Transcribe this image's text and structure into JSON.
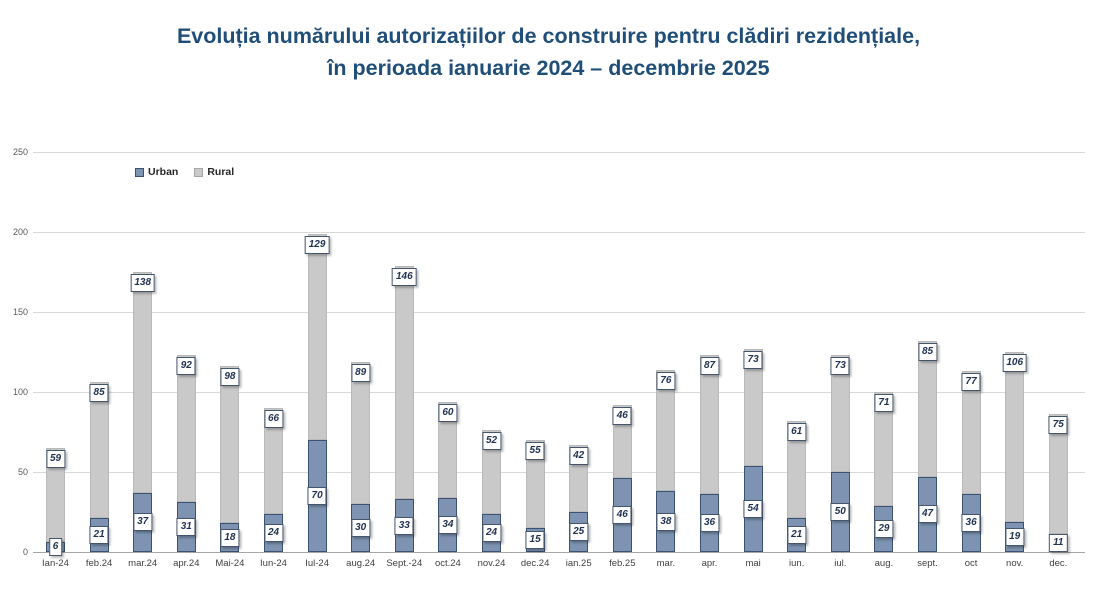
{
  "title": {
    "line1": "Evoluția numărului autorizațiilor de construire pentru clădiri rezidențiale,",
    "line2": "în perioada ianuarie 2024 – decembrie 2025",
    "color": "#1f4e79"
  },
  "legend": {
    "items": [
      {
        "label": "Urban",
        "color": "#7d93b1",
        "border": "#3a5173"
      },
      {
        "label": "Rural",
        "color": "#c9c9c9",
        "border": "#a6a6a6"
      }
    ]
  },
  "chart_data": {
    "type": "bar",
    "stacked": true,
    "title": "Evoluția numărului autorizațiilor de construire pentru clădiri rezidențiale, în perioada ianuarie 2024 – decembrie 2025",
    "categories": [
      "Ian-24",
      "feb.24",
      "mar.24",
      "apr.24",
      "Mai-24",
      "Iun-24",
      "Iul-24",
      "aug.24",
      "Sept.-24",
      "oct.24",
      "nov.24",
      "dec.24",
      "ian.25",
      "feb.25",
      "mar.",
      "apr.",
      "mai",
      "iun.",
      "iul.",
      "aug.",
      "sept.",
      "oct",
      "nov.",
      "dec."
    ],
    "series": [
      {
        "name": "Urban",
        "color": "#7d93b1",
        "border": "#3a5173",
        "values": [
          6,
          21,
          37,
          31,
          18,
          24,
          70,
          30,
          33,
          34,
          24,
          15,
          25,
          46,
          38,
          36,
          54,
          21,
          50,
          29,
          47,
          36,
          19,
          11
        ]
      },
      {
        "name": "Rural",
        "color": "#c9c9c9",
        "border": "#b9b9b9",
        "values": [
          59,
          85,
          138,
          92,
          98,
          66,
          129,
          89,
          146,
          60,
          52,
          55,
          42,
          46,
          76,
          87,
          73,
          61,
          73,
          71,
          85,
          77,
          106,
          75
        ]
      }
    ],
    "xlabel": "",
    "ylabel": "",
    "ylim": [
      0,
      250
    ],
    "yticks": [
      0,
      50,
      100,
      150,
      200,
      250
    ],
    "grid": true,
    "data_labels": true,
    "legend_position": "top-left-inside"
  }
}
